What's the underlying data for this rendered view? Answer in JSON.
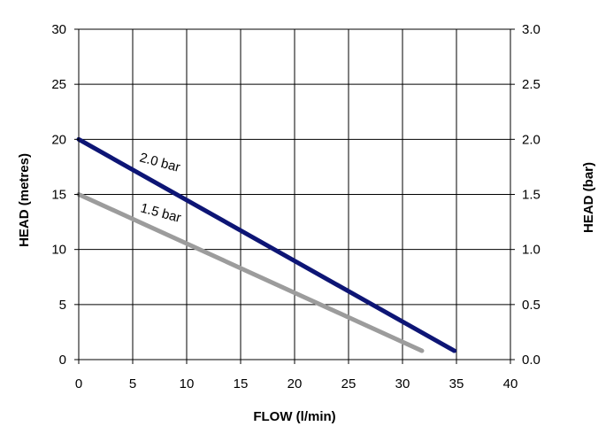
{
  "chart_data": {
    "type": "line",
    "xlabel": "FLOW (l/min)",
    "ylabel": "HEAD (metres)",
    "y2label": "HEAD (bar)",
    "xlim": [
      0,
      40
    ],
    "ylim": [
      0,
      30
    ],
    "y2lim": [
      0,
      3.0
    ],
    "xticks": [
      "0",
      "5",
      "10",
      "15",
      "20",
      "25",
      "30",
      "35",
      "40"
    ],
    "yticks": [
      "0",
      "5",
      "10",
      "15",
      "20",
      "25",
      "30"
    ],
    "y2ticks": [
      "0.0",
      "0.5",
      "1.0",
      "1.5",
      "2.0",
      "2.5",
      "3.0"
    ],
    "grid": true,
    "series": [
      {
        "name": "2.0 bar",
        "color": "#0d1575",
        "x": [
          0,
          34.8
        ],
        "y": [
          20,
          0.8
        ]
      },
      {
        "name": "1.5 bar",
        "color": "#9c9c9c",
        "x": [
          0,
          31.8
        ],
        "y": [
          15,
          0.8
        ]
      }
    ]
  }
}
